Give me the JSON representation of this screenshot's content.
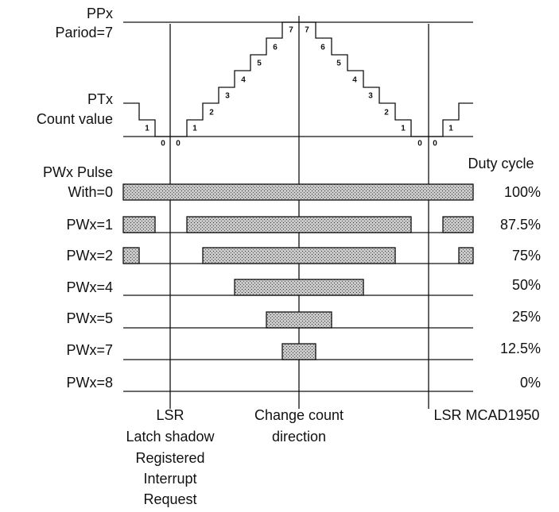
{
  "labels": {
    "ppx": "PPx",
    "period": "Pariod=7",
    "ptx": "PTx",
    "count_value": "Count value",
    "pw_pulse": "PWx Pulse",
    "with0": "With=0",
    "pw1": "PWx=1",
    "pw2": "PWx=2",
    "pw4": "PWx=4",
    "pw5": "PWx=5",
    "pw7": "PWx=7",
    "pw8": "PWx=8"
  },
  "duty": {
    "title": "Duty cycle",
    "values": [
      "100%",
      "87.5%",
      "75%",
      "50%",
      "25%",
      "12.5%",
      "0%"
    ]
  },
  "count_labels": [
    "1",
    "0",
    "0",
    "1",
    "2",
    "3",
    "4",
    "5",
    "6",
    "7",
    "7",
    "6",
    "5",
    "4",
    "3",
    "2",
    "1",
    "0",
    "0",
    "1"
  ],
  "bottom": {
    "lsr_left": [
      "LSR",
      "Latch shadow",
      "Registered",
      "Interrupt",
      "Request"
    ],
    "center": [
      "Change count",
      "direction"
    ],
    "lsr_right": "LSR MCAD1950"
  }
}
